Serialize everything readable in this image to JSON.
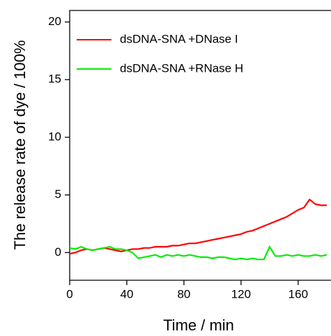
{
  "chart_data": {
    "type": "line",
    "x_label": "Time / min",
    "y_label": "The release rate of dye / 100%",
    "x": [
      0,
      4,
      8,
      12,
      16,
      20,
      24,
      28,
      32,
      36,
      40,
      44,
      48,
      52,
      56,
      60,
      64,
      68,
      72,
      76,
      80,
      84,
      88,
      92,
      96,
      100,
      104,
      108,
      112,
      116,
      120,
      124,
      128,
      132,
      136,
      140,
      144,
      148,
      152,
      156,
      160,
      164,
      168,
      172,
      176,
      180
    ],
    "series": [
      {
        "name": "dsDNA-SNA +DNase I",
        "color": "#ff0000",
        "values": [
          -0.1,
          0.0,
          0.2,
          0.3,
          0.2,
          0.3,
          0.4,
          0.3,
          0.2,
          0.1,
          0.2,
          0.3,
          0.3,
          0.4,
          0.4,
          0.5,
          0.5,
          0.5,
          0.6,
          0.6,
          0.7,
          0.8,
          0.8,
          0.9,
          1.0,
          1.1,
          1.2,
          1.3,
          1.4,
          1.5,
          1.6,
          1.8,
          1.9,
          2.1,
          2.3,
          2.5,
          2.7,
          2.9,
          3.1,
          3.4,
          3.7,
          3.9,
          4.6,
          4.2,
          4.1,
          4.1
        ]
      },
      {
        "name": "dsDNA-SNA +RNase H",
        "color": "#00ee00",
        "values": [
          0.4,
          0.3,
          0.5,
          0.3,
          0.2,
          0.3,
          0.4,
          0.5,
          0.3,
          0.3,
          0.2,
          0.0,
          -0.5,
          -0.4,
          -0.3,
          -0.2,
          -0.4,
          -0.2,
          -0.3,
          -0.2,
          -0.3,
          -0.2,
          -0.3,
          -0.4,
          -0.4,
          -0.5,
          -0.4,
          -0.4,
          -0.5,
          -0.6,
          -0.5,
          -0.6,
          -0.5,
          -0.6,
          -0.6,
          0.5,
          -0.3,
          -0.3,
          -0.2,
          -0.3,
          -0.2,
          -0.3,
          -0.3,
          -0.2,
          -0.3,
          -0.2
        ]
      }
    ],
    "xlim": [
      0,
      183
    ],
    "xticks": [
      0,
      40,
      80,
      120,
      160
    ],
    "ylim": [
      -2.4,
      21
    ],
    "yticks": [
      0,
      5,
      10,
      15,
      20
    ]
  }
}
